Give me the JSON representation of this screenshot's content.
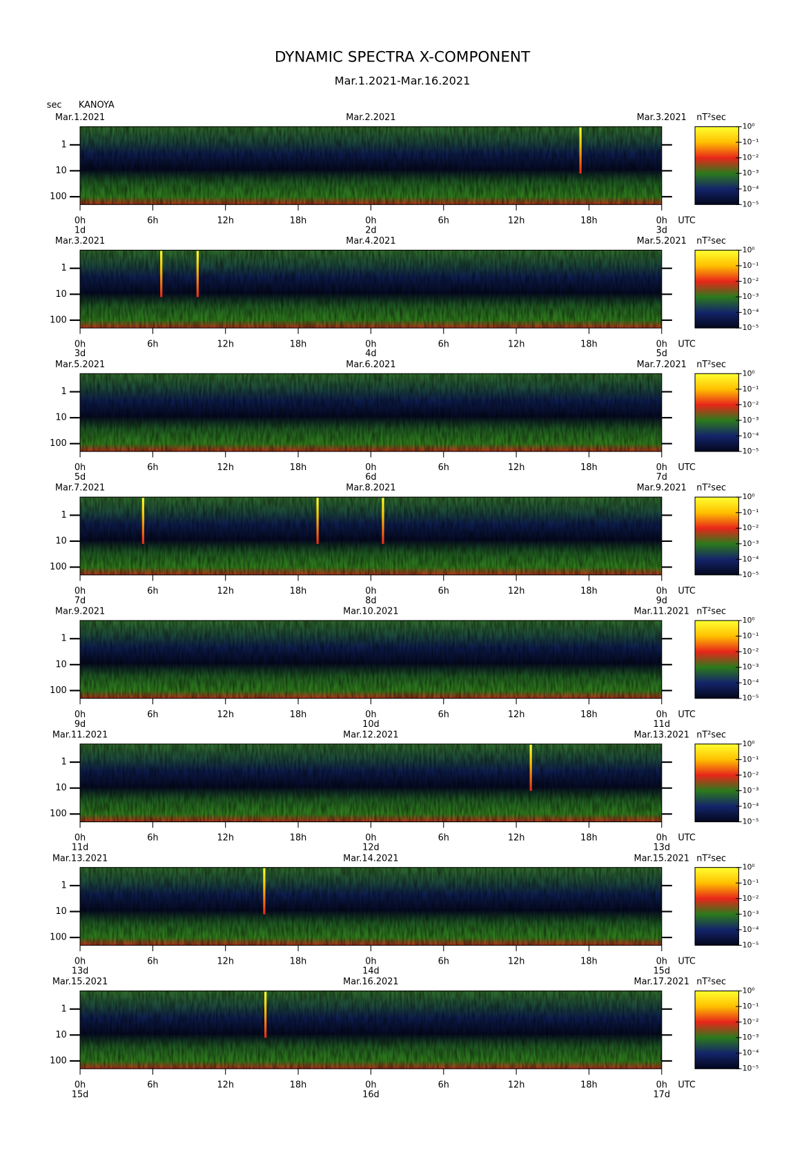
{
  "chart_data": {
    "type": "spectrogram",
    "title": "DYNAMIC SPECTRA X-COMPONENT",
    "subtitle": "Mar.1.2021-Mar.16.2021",
    "ylabel": "sec",
    "station": "KANOYA",
    "time_zone": "UTC",
    "colorbar_label": "nT²sec",
    "xlim": [
      0,
      48
    ],
    "xticks": [
      {
        "value": 0,
        "label": "0h"
      },
      {
        "value": 6,
        "label": "6h"
      },
      {
        "value": 12,
        "label": "12h"
      },
      {
        "value": 18,
        "label": "18h"
      },
      {
        "value": 24,
        "label": "0h"
      },
      {
        "value": 30,
        "label": "6h"
      },
      {
        "value": 36,
        "label": "12h"
      },
      {
        "value": 42,
        "label": "18h"
      },
      {
        "value": 48,
        "label": "0h"
      }
    ],
    "ylim": [
      0.2,
      200
    ],
    "yscale": "log",
    "yinverted": true,
    "yticks": [
      1,
      10,
      100
    ],
    "clim": [
      -5,
      0
    ],
    "cticks": [
      {
        "value": 0,
        "label": "10⁰"
      },
      {
        "value": -1,
        "label": "10⁻¹"
      },
      {
        "value": -2,
        "label": "10⁻²"
      },
      {
        "value": -3,
        "label": "10⁻³"
      },
      {
        "value": -4,
        "label": "10⁻⁴"
      },
      {
        "value": -5,
        "label": "10⁻⁵"
      }
    ],
    "colormap": [
      "#03071c",
      "#14246a",
      "#2c7a1c",
      "#e8261a",
      "#ffc000",
      "#ffff30"
    ],
    "panels": [
      {
        "dates": [
          "Mar.1.2021",
          "Mar.2.2021",
          "Mar.3.2021"
        ],
        "days": [
          "1d",
          "2d",
          "3d"
        ],
        "spikes": [
          41.3
        ]
      },
      {
        "dates": [
          "Mar.3.2021",
          "Mar.4.2021",
          "Mar.5.2021"
        ],
        "days": [
          "3d",
          "4d",
          "5d"
        ],
        "spikes": [
          6.7,
          9.7
        ]
      },
      {
        "dates": [
          "Mar.5.2021",
          "Mar.6.2021",
          "Mar.7.2021"
        ],
        "days": [
          "5d",
          "6d",
          "7d"
        ],
        "spikes": []
      },
      {
        "dates": [
          "Mar.7.2021",
          "Mar.8.2021",
          "Mar.9.2021"
        ],
        "days": [
          "7d",
          "8d",
          "9d"
        ],
        "spikes": [
          5.2,
          19.6,
          25.0
        ]
      },
      {
        "dates": [
          "Mar.9.2021",
          "Mar.10.2021",
          "Mar.11.2021"
        ],
        "days": [
          "9d",
          "10d",
          "11d"
        ],
        "spikes": []
      },
      {
        "dates": [
          "Mar.11.2021",
          "Mar.12.2021",
          "Mar.13.2021"
        ],
        "days": [
          "11d",
          "12d",
          "13d"
        ],
        "spikes": [
          37.2
        ]
      },
      {
        "dates": [
          "Mar.13.2021",
          "Mar.14.2021",
          "Mar.15.2021"
        ],
        "days": [
          "13d",
          "14d",
          "15d"
        ],
        "spikes": [
          15.2
        ]
      },
      {
        "dates": [
          "Mar.15.2021",
          "Mar.16.2021",
          "Mar.17.2021"
        ],
        "days": [
          "15d",
          "16d",
          "17d"
        ],
        "spikes": [
          15.3
        ]
      }
    ]
  }
}
